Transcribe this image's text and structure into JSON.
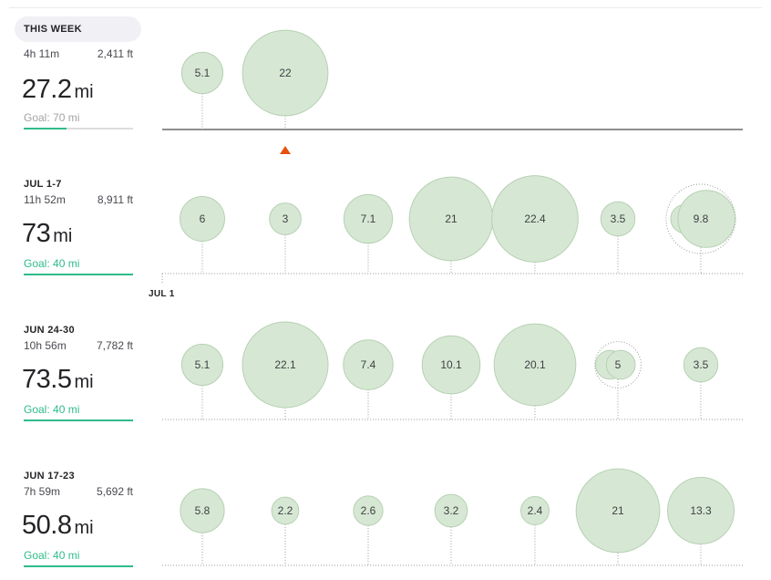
{
  "colors": {
    "goal_met": "#2ebc89",
    "goal_unmet": "#a3a3a3",
    "bubble": "#d6e8d4",
    "today_marker": "#e8500f"
  },
  "weeks": [
    {
      "label": "THIS WEEK",
      "time": "4h 11m",
      "elevation": "2,411 ft",
      "distance": "27.2",
      "unit": "mi",
      "goal": "Goal: 70 mi",
      "goal_progress": 0.39,
      "goal_met": false,
      "today_index": 1,
      "days": [
        {
          "value": "5.1",
          "miles": 5.1
        },
        {
          "value": "22",
          "miles": 22
        }
      ]
    },
    {
      "label": "JUL 1-7",
      "time": "11h 52m",
      "elevation": "8,911 ft",
      "distance": "73",
      "unit": "mi",
      "goal": "Goal: 40 mi",
      "goal_progress": 1,
      "goal_met": true,
      "month_marker": "JUL 1",
      "days": [
        {
          "value": "6",
          "miles": 6
        },
        {
          "value": "3",
          "miles": 3
        },
        {
          "value": "7.1",
          "miles": 7.1
        },
        {
          "value": "21",
          "miles": 21
        },
        {
          "value": "22.4",
          "miles": 22.4
        },
        {
          "value": "3.5",
          "miles": 3.5
        },
        {
          "value": "9.8",
          "miles": 9.8,
          "extra": 2.5
        }
      ]
    },
    {
      "label": "JUN 24-30",
      "time": "10h 56m",
      "elevation": "7,782 ft",
      "distance": "73.5",
      "unit": "mi",
      "goal": "Goal: 40 mi",
      "goal_progress": 1,
      "goal_met": true,
      "days": [
        {
          "value": "5.1",
          "miles": 5.1
        },
        {
          "value": "22.1",
          "miles": 22.1
        },
        {
          "value": "7.4",
          "miles": 7.4
        },
        {
          "value": "10.1",
          "miles": 10.1
        },
        {
          "value": "20.1",
          "miles": 20.1
        },
        {
          "value": "5",
          "miles": 2.5,
          "extra": 2.5
        },
        {
          "value": "3.5",
          "miles": 3.5
        }
      ]
    },
    {
      "label": "JUN 17-23",
      "time": "7h 59m",
      "elevation": "5,692 ft",
      "distance": "50.8",
      "unit": "mi",
      "goal": "Goal: 40 mi",
      "goal_progress": 1,
      "goal_met": true,
      "days": [
        {
          "value": "5.8",
          "miles": 5.8
        },
        {
          "value": "2.2",
          "miles": 2.2
        },
        {
          "value": "2.6",
          "miles": 2.6
        },
        {
          "value": "3.2",
          "miles": 3.2
        },
        {
          "value": "2.4",
          "miles": 2.4
        },
        {
          "value": "21",
          "miles": 21
        },
        {
          "value": "13.3",
          "miles": 13.3
        }
      ]
    }
  ]
}
